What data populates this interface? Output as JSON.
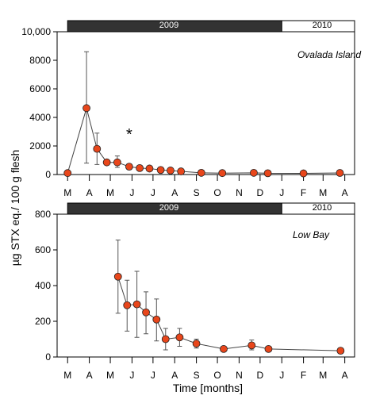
{
  "figure": {
    "ylabel": "µg STX eq./ 100 g flesh",
    "xlabel": "Time [months]"
  },
  "colors": {
    "point_fill": "#e8461b",
    "year_2009_band": "#333333",
    "year_2010_band": "#ffffff",
    "line": "#444444"
  },
  "chart_data": [
    {
      "type": "line",
      "annotation": "Ovalada Island",
      "year_bands": [
        {
          "label": "2009",
          "from": "2009-03-01",
          "to": "2010-01-01"
        },
        {
          "label": "2010",
          "from": "2010-01-01",
          "to": "2010-04-15"
        }
      ],
      "x_tick_labels": [
        "M",
        "A",
        "M",
        "J",
        "J",
        "A",
        "S",
        "O",
        "N",
        "D",
        "J",
        "F",
        "M",
        "A"
      ],
      "x_ticks": [
        "2009-03-01",
        "2009-04-01",
        "2009-05-01",
        "2009-06-01",
        "2009-07-01",
        "2009-08-01",
        "2009-09-01",
        "2009-10-01",
        "2009-11-01",
        "2009-12-01",
        "2010-01-01",
        "2010-02-01",
        "2010-03-01",
        "2010-04-01"
      ],
      "ylim": [
        0,
        10000
      ],
      "y_ticks": [
        0,
        2000,
        4000,
        6000,
        8000,
        10000
      ],
      "y_tick_labels": [
        "0",
        "2000",
        "4000",
        "6000",
        "8000",
        "10,000"
      ],
      "marker": "*",
      "marker_x": "2009-05-28",
      "marker_y": 3000,
      "points": [
        {
          "x": "2009-03-01",
          "y": 100
        },
        {
          "x": "2009-03-28",
          "y": 4650,
          "lo": 800,
          "hi": 8600
        },
        {
          "x": "2009-04-12",
          "y": 1800,
          "lo": 700,
          "hi": 2900
        },
        {
          "x": "2009-04-26",
          "y": 850
        },
        {
          "x": "2009-05-11",
          "y": 850,
          "lo": 500,
          "hi": 1300
        },
        {
          "x": "2009-05-28",
          "y": 550,
          "lo": 350,
          "hi": 750
        },
        {
          "x": "2009-06-12",
          "y": 450
        },
        {
          "x": "2009-06-26",
          "y": 420
        },
        {
          "x": "2009-07-12",
          "y": 320
        },
        {
          "x": "2009-07-26",
          "y": 280
        },
        {
          "x": "2009-08-10",
          "y": 220
        },
        {
          "x": "2009-09-08",
          "y": 120
        },
        {
          "x": "2009-10-08",
          "y": 100
        },
        {
          "x": "2009-11-22",
          "y": 120
        },
        {
          "x": "2009-12-12",
          "y": 90
        },
        {
          "x": "2010-02-01",
          "y": 80
        },
        {
          "x": "2010-03-25",
          "y": 110
        }
      ]
    },
    {
      "type": "line",
      "annotation": "Low Bay",
      "year_bands": [
        {
          "label": "2009",
          "from": "2009-03-01",
          "to": "2010-01-01"
        },
        {
          "label": "2010",
          "from": "2010-01-01",
          "to": "2010-04-15"
        }
      ],
      "x_tick_labels": [
        "M",
        "A",
        "M",
        "J",
        "J",
        "A",
        "S",
        "O",
        "N",
        "D",
        "J",
        "F",
        "M",
        "A"
      ],
      "x_ticks": [
        "2009-03-01",
        "2009-04-01",
        "2009-05-01",
        "2009-06-01",
        "2009-07-01",
        "2009-08-01",
        "2009-09-01",
        "2009-10-01",
        "2009-11-01",
        "2009-12-01",
        "2010-01-01",
        "2010-02-01",
        "2010-03-01",
        "2010-04-01"
      ],
      "ylim": [
        0,
        800
      ],
      "y_ticks": [
        0,
        200,
        400,
        600,
        800
      ],
      "y_tick_labels": [
        "0",
        "200",
        "400",
        "600",
        "800"
      ],
      "points": [
        {
          "x": "2009-05-12",
          "y": 450,
          "lo": 245,
          "hi": 655
        },
        {
          "x": "2009-05-25",
          "y": 290,
          "lo": 145,
          "hi": 430
        },
        {
          "x": "2009-06-08",
          "y": 295,
          "lo": 110,
          "hi": 480
        },
        {
          "x": "2009-06-21",
          "y": 250,
          "lo": 130,
          "hi": 365
        },
        {
          "x": "2009-07-06",
          "y": 210,
          "lo": 90,
          "hi": 325
        },
        {
          "x": "2009-07-19",
          "y": 100,
          "lo": 40,
          "hi": 160
        },
        {
          "x": "2009-08-08",
          "y": 110,
          "lo": 60,
          "hi": 160
        },
        {
          "x": "2009-09-01",
          "y": 75,
          "lo": 50,
          "hi": 100
        },
        {
          "x": "2009-10-10",
          "y": 45,
          "lo": 35,
          "hi": 55
        },
        {
          "x": "2009-11-19",
          "y": 65,
          "lo": 40,
          "hi": 95
        },
        {
          "x": "2009-12-13",
          "y": 45,
          "lo": 35,
          "hi": 55
        },
        {
          "x": "2010-03-26",
          "y": 35,
          "lo": 20,
          "hi": 50
        }
      ]
    }
  ]
}
